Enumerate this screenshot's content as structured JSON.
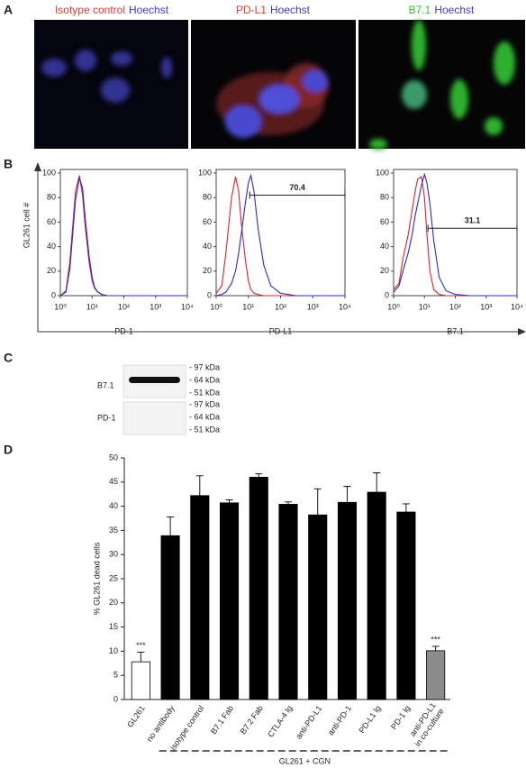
{
  "panel_labels": [
    "A",
    "B",
    "C",
    "D"
  ],
  "microscopy": [
    {
      "stains": [
        {
          "text": "Isotype control",
          "color": "#e8392f"
        },
        {
          "text": "Hoechst",
          "color": "#3a3ad2"
        }
      ]
    },
    {
      "stains": [
        {
          "text": "PD-L1",
          "color": "#e8392f"
        },
        {
          "text": "Hoechst",
          "color": "#3a3ad2"
        }
      ]
    },
    {
      "stains": [
        {
          "text": "B7.1",
          "color": "#2fc42f"
        },
        {
          "text": "Hoechst",
          "color": "#3a3ad2"
        }
      ]
    }
  ],
  "western_blot": {
    "rows": [
      {
        "label": "B7.1",
        "markers": [
          "- 97 kDa",
          "- 64 kDa",
          "- 51 kDa"
        ]
      },
      {
        "label": "PD-1",
        "markers": [
          "- 97 kDa",
          "- 64 kDa",
          "- 51 kDa"
        ]
      }
    ]
  },
  "chart_data": [
    {
      "type": "line",
      "xlog": true,
      "ylabel": "GL261 cell #",
      "xlabel": "PD-1",
      "x": [
        1,
        1.5,
        2,
        3,
        4,
        5,
        6,
        8,
        10,
        12,
        15,
        20,
        30,
        50,
        100,
        300,
        1000,
        10000
      ],
      "series": [
        {
          "color": "#e0202a",
          "values": [
            0,
            4,
            28,
            85,
            98,
            82,
            58,
            28,
            12,
            6,
            3,
            1,
            0,
            0,
            0,
            0,
            0,
            0
          ]
        },
        {
          "color": "#2a2ad0",
          "values": [
            0,
            3,
            22,
            78,
            96,
            88,
            65,
            33,
            15,
            7,
            3,
            1,
            0,
            0,
            0,
            0,
            0,
            0
          ]
        }
      ],
      "xlim": [
        1,
        10000
      ],
      "ylim": [
        0,
        100
      ],
      "xticks": [
        {
          "value": 1,
          "label": "10⁰"
        },
        {
          "value": 10,
          "label": "10¹"
        },
        {
          "value": 100,
          "label": "10²"
        },
        {
          "value": 1000,
          "label": "10³"
        },
        {
          "value": 10000,
          "label": "10⁴"
        }
      ],
      "yticks": [
        0,
        20,
        40,
        60,
        80,
        100
      ]
    },
    {
      "type": "line",
      "xlog": true,
      "xlabel": "PD-L1",
      "x": [
        1,
        1.5,
        2,
        3,
        4,
        5,
        6,
        8,
        10,
        12,
        15,
        20,
        30,
        50,
        100,
        300,
        1000,
        10000
      ],
      "series": [
        {
          "color": "#e0202a",
          "values": [
            2,
            8,
            35,
            80,
            97,
            85,
            60,
            30,
            12,
            5,
            2,
            1,
            0,
            0,
            0,
            0,
            0,
            0
          ]
        },
        {
          "color": "#2a2ad0",
          "values": [
            0,
            1,
            3,
            10,
            20,
            35,
            50,
            75,
            92,
            98,
            85,
            55,
            25,
            8,
            2,
            0,
            0,
            0
          ]
        }
      ],
      "gate": {
        "label": 70.4,
        "x": [
          11,
          10000
        ],
        "y": 82
      },
      "xlim": [
        1,
        10000
      ],
      "ylim": [
        0,
        100
      ],
      "xticks": [
        {
          "value": 1,
          "label": "10⁰"
        },
        {
          "value": 10,
          "label": "10¹"
        },
        {
          "value": 100,
          "label": "10²"
        },
        {
          "value": 1000,
          "label": "10³"
        },
        {
          "value": 10000,
          "label": "10⁴"
        }
      ],
      "yticks": [
        0,
        20,
        40,
        60,
        80,
        100
      ]
    },
    {
      "type": "line",
      "xlog": true,
      "xlabel": "B7.1",
      "x": [
        1,
        1.5,
        2,
        3,
        4,
        5,
        6,
        8,
        10,
        12,
        15,
        20,
        30,
        50,
        100,
        300,
        1000,
        10000
      ],
      "series": [
        {
          "color": "#e0202a",
          "values": [
            5,
            10,
            30,
            50,
            70,
            85,
            95,
            97,
            80,
            50,
            20,
            5,
            1,
            0,
            0,
            0,
            0,
            0
          ]
        },
        {
          "color": "#2a2ad0",
          "values": [
            3,
            8,
            20,
            35,
            50,
            65,
            75,
            90,
            99,
            92,
            75,
            45,
            15,
            4,
            1,
            0,
            0,
            0
          ]
        }
      ],
      "gate": {
        "label": 31.1,
        "x": [
          13,
          10000
        ],
        "y": 55
      },
      "xlim": [
        1,
        10000
      ],
      "ylim": [
        0,
        100
      ],
      "xticks": [
        {
          "value": 1,
          "label": "10⁰"
        },
        {
          "value": 10,
          "label": "10¹"
        },
        {
          "value": 100,
          "label": "10²"
        },
        {
          "value": 1000,
          "label": "10³"
        },
        {
          "value": 10000,
          "label": "10⁴"
        }
      ],
      "yticks": [
        0,
        20,
        40,
        60,
        80,
        100
      ]
    },
    {
      "type": "bar",
      "ylabel": "% GL261 dead cells",
      "categories": [
        "GL261",
        "no antibody",
        "isotype control",
        "B7.1 Fab",
        "B7.2 Fab",
        "CTLA-4 lg",
        "anti-PD-L1",
        "anti-PD-1",
        "PD-L1 lg",
        "PD-1 lg",
        "anti-PD-L1\nin co-culture"
      ],
      "values": [
        7.8,
        33.9,
        42.2,
        40.7,
        46.0,
        40.4,
        38.2,
        40.8,
        42.9,
        38.8,
        10.1
      ],
      "errors": [
        2.0,
        3.9,
        4.1,
        0.6,
        0.7,
        0.5,
        5.4,
        3.3,
        4.0,
        1.7,
        0.9
      ],
      "colors": [
        "#ffffff",
        "#000000",
        "#000000",
        "#000000",
        "#000000",
        "#000000",
        "#000000",
        "#000000",
        "#000000",
        "#000000",
        "#8c8c8c"
      ],
      "significance": [
        "***",
        null,
        null,
        null,
        null,
        null,
        null,
        null,
        null,
        null,
        "***"
      ],
      "group": {
        "label": "GL261 + CGN",
        "categories": [
          1,
          10
        ]
      },
      "ylim": [
        0,
        50
      ],
      "yticks": [
        0,
        5,
        10,
        15,
        20,
        25,
        30,
        35,
        40,
        45,
        50
      ]
    }
  ]
}
